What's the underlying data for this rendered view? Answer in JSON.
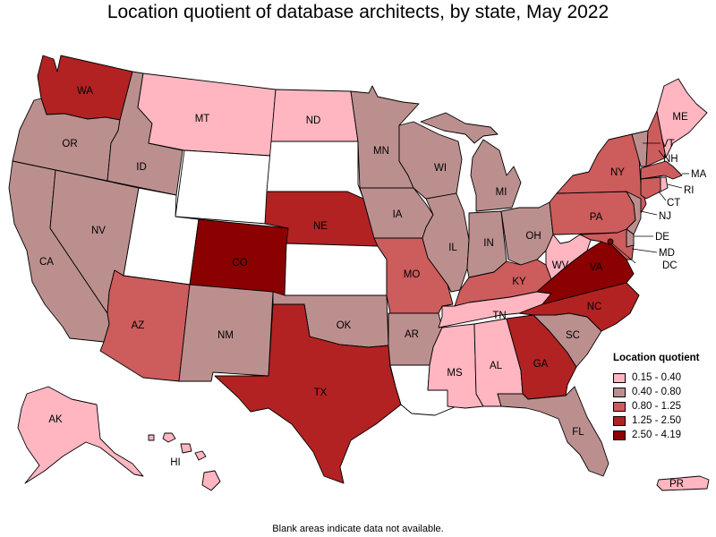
{
  "title": "Location quotient of database architects, by state, May 2022",
  "footnote": "Blank areas indicate data not available.",
  "legend": {
    "title": "Location quotient",
    "items": [
      {
        "label": "0.15 - 0.40",
        "color": "#ffb6c1"
      },
      {
        "label": "0.40 - 0.80",
        "color": "#bc8f8f"
      },
      {
        "label": "0.80 - 1.25",
        "color": "#cd5c5c"
      },
      {
        "label": "1.25 - 2.50",
        "color": "#b22222"
      },
      {
        "label": "2.50 - 4.19",
        "color": "#8b0000"
      }
    ],
    "no_data_color": "#ffffff"
  },
  "states": {
    "WA": {
      "label": "WA",
      "class": 3
    },
    "OR": {
      "label": "OR",
      "class": 1
    },
    "CA": {
      "label": "CA",
      "class": 1
    },
    "ID": {
      "label": "ID",
      "class": 1
    },
    "NV": {
      "label": "NV",
      "class": 1
    },
    "MT": {
      "label": "MT",
      "class": 0
    },
    "WY": {
      "label": "",
      "class": -1
    },
    "UT": {
      "label": "",
      "class": -1
    },
    "AZ": {
      "label": "AZ",
      "class": 2
    },
    "CO": {
      "label": "CO",
      "class": 4
    },
    "NM": {
      "label": "NM",
      "class": 1
    },
    "ND": {
      "label": "ND",
      "class": 0
    },
    "SD": {
      "label": "",
      "class": -1
    },
    "NE": {
      "label": "NE",
      "class": 3
    },
    "KS": {
      "label": "",
      "class": -1
    },
    "OK": {
      "label": "OK",
      "class": 1
    },
    "TX": {
      "label": "TX",
      "class": 3
    },
    "MN": {
      "label": "MN",
      "class": 1
    },
    "IA": {
      "label": "IA",
      "class": 1
    },
    "MO": {
      "label": "MO",
      "class": 2
    },
    "AR": {
      "label": "AR",
      "class": 1
    },
    "LA": {
      "label": "",
      "class": -1
    },
    "WI": {
      "label": "WI",
      "class": 1
    },
    "IL": {
      "label": "IL",
      "class": 1
    },
    "MI": {
      "label": "MI",
      "class": 1
    },
    "IN": {
      "label": "IN",
      "class": 1
    },
    "OH": {
      "label": "OH",
      "class": 1
    },
    "KY": {
      "label": "KY",
      "class": 2
    },
    "TN": {
      "label": "TN",
      "class": 0
    },
    "MS": {
      "label": "MS",
      "class": 0
    },
    "AL": {
      "label": "AL",
      "class": 0
    },
    "GA": {
      "label": "GA",
      "class": 3
    },
    "FL": {
      "label": "FL",
      "class": 1
    },
    "SC": {
      "label": "SC",
      "class": 1
    },
    "NC": {
      "label": "NC",
      "class": 3
    },
    "VA": {
      "label": "VA",
      "class": 4
    },
    "WV": {
      "label": "WV",
      "class": 0
    },
    "PA": {
      "label": "PA",
      "class": 2
    },
    "NY": {
      "label": "NY",
      "class": 2
    },
    "VT": {
      "label": "VT",
      "class": 1
    },
    "NH": {
      "label": "NH",
      "class": 2
    },
    "ME": {
      "label": "ME",
      "class": 0
    },
    "MA": {
      "label": "MA",
      "class": 2
    },
    "RI": {
      "label": "RI",
      "class": 0
    },
    "CT": {
      "label": "CT",
      "class": 2
    },
    "NJ": {
      "label": "NJ",
      "class": 1
    },
    "DE": {
      "label": "DE",
      "class": 1
    },
    "MD": {
      "label": "MD",
      "class": 2
    },
    "DC": {
      "label": "DC",
      "class": 4
    },
    "AK": {
      "label": "AK",
      "class": 0
    },
    "HI": {
      "label": "HI",
      "class": 0
    },
    "PR": {
      "label": "PR",
      "class": 0
    }
  }
}
